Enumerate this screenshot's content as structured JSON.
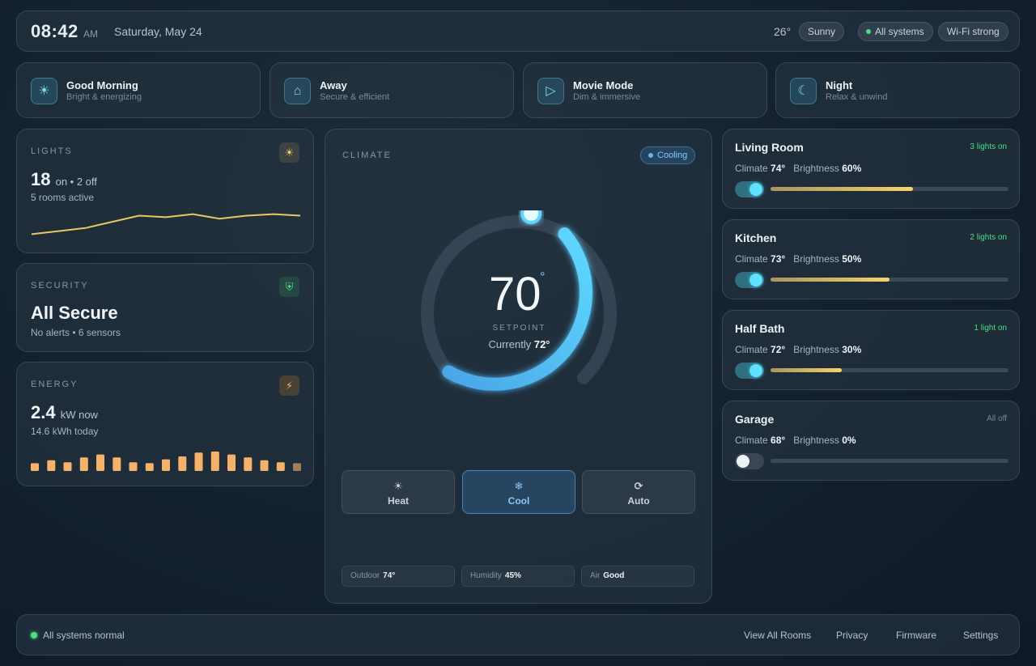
{
  "header": {
    "time": "08:42",
    "ampm": "AM",
    "date": "Saturday, May 24",
    "temperature": "26°",
    "weather": "Sunny",
    "systems_chip": "All systems",
    "wifi_chip": "Wi-Fi strong"
  },
  "scenes": [
    {
      "name": "Good Morning",
      "subtitle": "Bright & energizing",
      "icon": "sun-icon",
      "glyph": "☀"
    },
    {
      "name": "Away",
      "subtitle": "Secure & efficient",
      "icon": "home-icon",
      "glyph": "⌂"
    },
    {
      "name": "Movie Mode",
      "subtitle": "Dim & immersive",
      "icon": "play-icon",
      "glyph": "▷"
    },
    {
      "name": "Night",
      "subtitle": "Relax & unwind",
      "icon": "moon-icon",
      "glyph": "☾"
    }
  ],
  "lights": {
    "label": "LIGHTS",
    "icon_glyph": "☀",
    "on_count": "18",
    "on_text": "on • 2 off",
    "subtitle": "5 rooms active",
    "trend": [
      30,
      32,
      34,
      38,
      42,
      41,
      43,
      40,
      42,
      43,
      42
    ]
  },
  "security": {
    "label": "SECURITY",
    "icon_glyph": "⛨",
    "status": "All Secure",
    "subtitle": "No alerts • 6 sensors"
  },
  "energy": {
    "label": "ENERGY",
    "icon_glyph": "⚡",
    "value": "2.4",
    "unit": "kW now",
    "subtitle": "14.6 kWh today",
    "bars": [
      0.4,
      0.55,
      0.45,
      0.7,
      0.85,
      0.7,
      0.45,
      0.4,
      0.6,
      0.75,
      0.95,
      1.0,
      0.85,
      0.7,
      0.55,
      0.45,
      0.4
    ]
  },
  "climate": {
    "label": "CLIMATE",
    "badge": "Cooling",
    "setpoint": "70",
    "setpoint_unit": "°",
    "setpoint_label": "SETPOINT",
    "current_prefix": "Currently",
    "current": "72°",
    "dial_fraction": 0.72,
    "modes": [
      {
        "label": "Heat",
        "glyph": "☀",
        "icon": "sun-icon",
        "active": false
      },
      {
        "label": "Cool",
        "glyph": "❄",
        "icon": "snowflake-icon",
        "active": true
      },
      {
        "label": "Auto",
        "glyph": "⟳",
        "icon": "refresh-icon",
        "active": false
      }
    ],
    "stats": [
      {
        "label": "Outdoor",
        "value": "74°"
      },
      {
        "label": "Humidity",
        "value": "45%"
      },
      {
        "label": "Air",
        "value": "Good"
      }
    ]
  },
  "rooms": [
    {
      "name": "Living Room",
      "status": "3 lights on",
      "climate_label": "Climate",
      "climate": "74°",
      "brightness_label": "Brightness",
      "brightness": "60%",
      "level": 0.6,
      "on": true
    },
    {
      "name": "Kitchen",
      "status": "2 lights on",
      "climate_label": "Climate",
      "climate": "73°",
      "brightness_label": "Brightness",
      "brightness": "50%",
      "level": 0.5,
      "on": true
    },
    {
      "name": "Half Bath",
      "status": "1 light on",
      "climate_label": "Climate",
      "climate": "72°",
      "brightness_label": "Brightness",
      "brightness": "30%",
      "level": 0.3,
      "on": true
    },
    {
      "name": "Garage",
      "status": "All off",
      "climate_label": "Climate",
      "climate": "68°",
      "brightness_label": "Brightness",
      "brightness": "0%",
      "level": 0.0,
      "on": false
    }
  ],
  "footer": {
    "status": "All systems normal",
    "links": [
      "View All Rooms",
      "Privacy",
      "Firmware",
      "Settings"
    ]
  },
  "colors": {
    "accent": "#5ee0ff",
    "ok": "#4ade80",
    "energy": "#f4b26a",
    "lights_line": "#e8c862"
  }
}
